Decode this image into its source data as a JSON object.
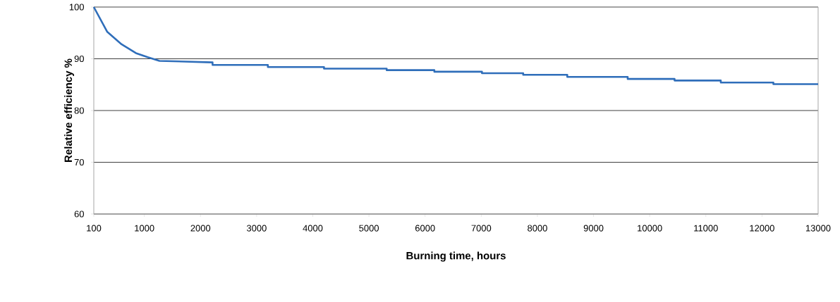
{
  "chart_data": {
    "type": "line",
    "xlabel": "Burning time, hours",
    "ylabel": "Relative efficiency %",
    "xlim": [
      100,
      13000
    ],
    "xticks": [
      100,
      1000,
      2000,
      3000,
      4000,
      5000,
      6000,
      7000,
      8000,
      9000,
      10000,
      11000,
      12000,
      13000
    ],
    "ylim": [
      60,
      100
    ],
    "yticks": [
      60,
      70,
      80,
      90,
      100
    ],
    "grid": "y",
    "marker": "none",
    "line_style": "solid",
    "series": [
      {
        "color": "#2f6eba",
        "x": [
          100,
          340,
          595,
          850,
          1060,
          1270,
          2215,
          2215,
          3200,
          3200,
          4200,
          4200,
          5316,
          5316,
          6165,
          6165,
          7013,
          7013,
          7747,
          7747,
          8532,
          8532,
          9608,
          9608,
          10443,
          10443,
          11266,
          11266,
          12203,
          12203,
          13000
        ],
        "values": [
          100,
          95.2,
          92.8,
          91.1,
          90.3,
          89.6,
          89.3,
          88.8,
          88.8,
          88.4,
          88.4,
          88.1,
          88.1,
          87.8,
          87.8,
          87.5,
          87.5,
          87.2,
          87.2,
          86.9,
          86.9,
          86.5,
          86.5,
          86.1,
          86.1,
          85.8,
          85.8,
          85.4,
          85.4,
          85.1,
          85.1
        ]
      }
    ]
  }
}
